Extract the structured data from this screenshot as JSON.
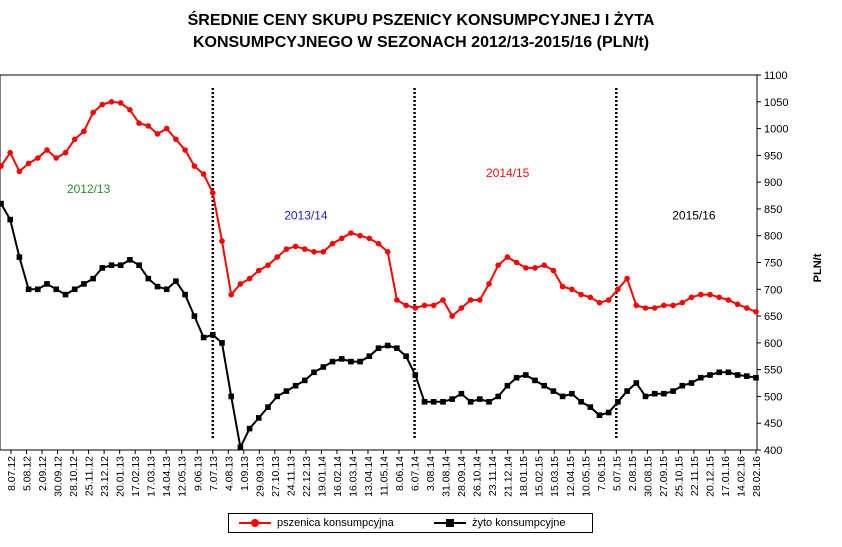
{
  "chart_data": {
    "type": "line",
    "title_lines": [
      "ŚREDNIE CENY SKUPU PSZENICY KONSUMPCYJNEJ I ŻYTA",
      "KONSUMPCYJNEGO W SEZONACH 2012/13-2015/16 (PLN/t)"
    ],
    "ylabel": "PLN/t",
    "ylim": [
      400,
      1100
    ],
    "yticks": [
      400,
      450,
      500,
      550,
      600,
      650,
      700,
      750,
      800,
      850,
      900,
      950,
      1000,
      1050,
      1100
    ],
    "xticks": [
      "8.07.12",
      "5.08.12",
      "2.09.12",
      "30.09.12",
      "28.10.12",
      "25.11.12",
      "23.12.12",
      "20.01.13",
      "17.02.13",
      "17.03.13",
      "14.04.13",
      "12.05.13",
      "9.06.13",
      "7.07.13",
      "4.08.13",
      "1.09.13",
      "29.09.13",
      "27.10.13",
      "24.11.13",
      "22.12.13",
      "19.01.14",
      "16.02.14",
      "16.03.14",
      "13.04.14",
      "11.05.14",
      "8.06.14",
      "6.07.14",
      "3.08.14",
      "31.08.14",
      "28.09.14",
      "26.10.14",
      "23.11.14",
      "21.12.14",
      "18.01.15",
      "15.02.15",
      "15.03.15",
      "12.04.15",
      "10.05.15",
      "7.06.15",
      "5.07.15",
      "2.08.15",
      "30.08.15",
      "27.09.15",
      "25.10.15",
      "22.11.15",
      "20.12.15",
      "17.01.16",
      "14.02.16",
      "28.02.16"
    ],
    "season_dividers": [
      "7.07.13",
      "6.07.14",
      "5.07.15"
    ],
    "season_labels": [
      {
        "text": "2012/13",
        "color": "#2e8b2e",
        "x": "25.11.12",
        "y": 880
      },
      {
        "text": "2013/14",
        "color": "#2222cc",
        "x": "22.12.13",
        "y": 830
      },
      {
        "text": "2014/15",
        "color": "#ee1111",
        "x": "21.12.14",
        "y": 910
      },
      {
        "text": "2015/16",
        "color": "#000000",
        "x": "22.11.15",
        "y": 830
      }
    ],
    "series": [
      {
        "name": "pszenica konsumpcyjna",
        "color": "#ff0000",
        "values": [
          930,
          955,
          920,
          935,
          945,
          960,
          945,
          955,
          980,
          995,
          1030,
          1045,
          1050,
          1048,
          1035,
          1010,
          1005,
          990,
          1000,
          980,
          960,
          930,
          915,
          880,
          790,
          690,
          710,
          720,
          735,
          745,
          760,
          775,
          780,
          775,
          770,
          770,
          785,
          795,
          805,
          800,
          795,
          785,
          770,
          680,
          670,
          665,
          670,
          670,
          680,
          650,
          665,
          680,
          680,
          710,
          745,
          760,
          750,
          740,
          740,
          745,
          735,
          705,
          700,
          690,
          685,
          675,
          680,
          700,
          720,
          670,
          665,
          665,
          670,
          670,
          675,
          685,
          690,
          690,
          685,
          680,
          672,
          665,
          658
        ]
      },
      {
        "name": "żyto konsumpcyjne",
        "color": "#000000",
        "values": [
          860,
          830,
          760,
          700,
          700,
          710,
          700,
          690,
          700,
          710,
          720,
          740,
          745,
          745,
          755,
          745,
          720,
          705,
          700,
          715,
          690,
          650,
          610,
          615,
          600,
          500,
          405,
          440,
          460,
          480,
          500,
          510,
          520,
          530,
          545,
          555,
          565,
          570,
          565,
          565,
          575,
          590,
          595,
          590,
          575,
          540,
          490,
          490,
          490,
          495,
          505,
          490,
          495,
          490,
          500,
          520,
          535,
          540,
          530,
          520,
          510,
          500,
          505,
          490,
          480,
          465,
          470,
          490,
          510,
          525,
          500,
          505,
          505,
          510,
          520,
          525,
          535,
          540,
          545,
          545,
          540,
          538,
          535
        ]
      }
    ]
  },
  "legend": {
    "items": [
      "pszenica konsumpcyjna",
      "żyto konsumpcyjne"
    ]
  }
}
